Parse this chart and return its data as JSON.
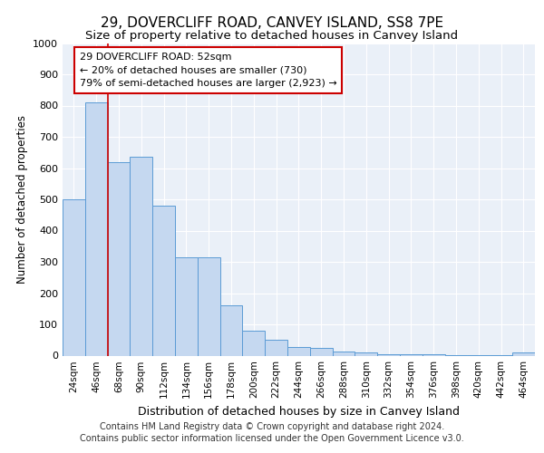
{
  "title": "29, DOVERCLIFF ROAD, CANVEY ISLAND, SS8 7PE",
  "subtitle": "Size of property relative to detached houses in Canvey Island",
  "xlabel": "Distribution of detached houses by size in Canvey Island",
  "ylabel": "Number of detached properties",
  "footer1": "Contains HM Land Registry data © Crown copyright and database right 2024.",
  "footer2": "Contains public sector information licensed under the Open Government Licence v3.0.",
  "annotation_line1": "29 DOVERCLIFF ROAD: 52sqm",
  "annotation_line2": "← 20% of detached houses are smaller (730)",
  "annotation_line3": "79% of semi-detached houses are larger (2,923) →",
  "categories": [
    "24sqm",
    "46sqm",
    "68sqm",
    "90sqm",
    "112sqm",
    "134sqm",
    "156sqm",
    "178sqm",
    "200sqm",
    "222sqm",
    "244sqm",
    "266sqm",
    "288sqm",
    "310sqm",
    "332sqm",
    "354sqm",
    "376sqm",
    "398sqm",
    "420sqm",
    "442sqm",
    "464sqm"
  ],
  "values": [
    500,
    810,
    620,
    635,
    480,
    315,
    315,
    160,
    80,
    50,
    28,
    25,
    12,
    10,
    5,
    4,
    3,
    2,
    2,
    2,
    10
  ],
  "bar_color": "#c5d8f0",
  "bar_edge_color": "#5b9bd5",
  "marker_color": "#cc0000",
  "background_color": "#ffffff",
  "plot_bg_color": "#eaf0f8",
  "grid_color": "#ffffff",
  "ylim": [
    0,
    1000
  ],
  "yticks": [
    0,
    100,
    200,
    300,
    400,
    500,
    600,
    700,
    800,
    900,
    1000
  ],
  "title_fontsize": 11,
  "subtitle_fontsize": 9.5,
  "ylabel_fontsize": 8.5,
  "xlabel_fontsize": 9,
  "tick_fontsize": 8,
  "xtick_fontsize": 7.5,
  "footer_fontsize": 7
}
